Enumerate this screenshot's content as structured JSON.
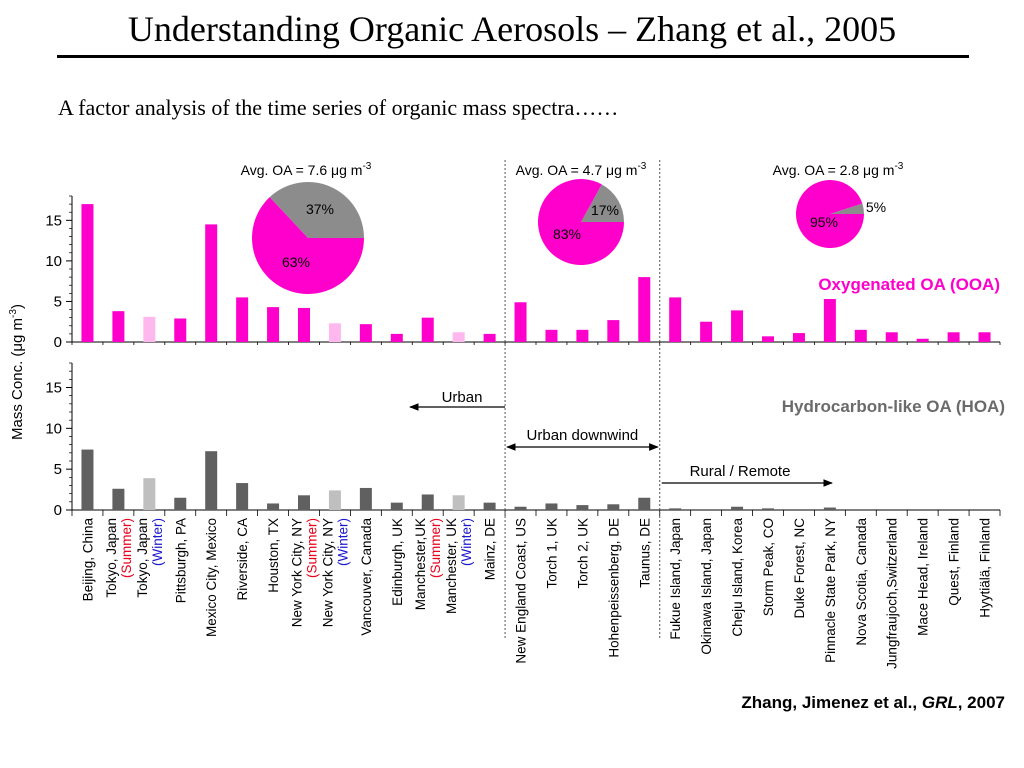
{
  "slide": {
    "title": "Understanding Organic Aerosols – Zhang et al., 2005",
    "subtitle": "A factor analysis of the time series of organic mass spectra……"
  },
  "chart_data": {
    "type": "bar",
    "ylabel": "Mass Conc. (μg m⁻³)",
    "citation": "Zhang, Jimenez et al., GRL, 2007",
    "categories": [
      {
        "lines": [
          {
            "t": "Beijing, China"
          }
        ]
      },
      {
        "lines": [
          {
            "t": "Tokyo, Japan"
          },
          {
            "t": "(Summer)",
            "c": "#e8001c"
          }
        ]
      },
      {
        "lines": [
          {
            "t": "Tokyo, Japan"
          },
          {
            "t": "(Winter)",
            "c": "#1a1acd"
          }
        ]
      },
      {
        "lines": [
          {
            "t": "Pittsburgh, PA"
          }
        ]
      },
      {
        "lines": [
          {
            "t": "Mexico City, Mexico"
          }
        ]
      },
      {
        "lines": [
          {
            "t": "Riverside, CA"
          }
        ]
      },
      {
        "lines": [
          {
            "t": "Houston, TX"
          }
        ]
      },
      {
        "lines": [
          {
            "t": "New York City, NY"
          },
          {
            "t": "(Summer)",
            "c": "#e8001c"
          }
        ]
      },
      {
        "lines": [
          {
            "t": "New York City, NY"
          },
          {
            "t": "(Winter)",
            "c": "#1a1acd"
          }
        ]
      },
      {
        "lines": [
          {
            "t": "Vancouver, Canada"
          }
        ]
      },
      {
        "lines": [
          {
            "t": "Edinburgh, UK"
          }
        ]
      },
      {
        "lines": [
          {
            "t": "Manchester,UK"
          },
          {
            "t": "(Summer)",
            "c": "#e8001c"
          }
        ]
      },
      {
        "lines": [
          {
            "t": "Manchester, UK"
          },
          {
            "t": "(Winter)",
            "c": "#1a1acd"
          }
        ]
      },
      {
        "lines": [
          {
            "t": "Mainz, DE"
          }
        ]
      },
      {
        "lines": [
          {
            "t": "New England Coast, US"
          }
        ]
      },
      {
        "lines": [
          {
            "t": "Torch 1, UK"
          }
        ]
      },
      {
        "lines": [
          {
            "t": "Torch 2, UK"
          }
        ]
      },
      {
        "lines": [
          {
            "t": "Hohenpeissenberg, DE"
          }
        ]
      },
      {
        "lines": [
          {
            "t": "Taunus, DE"
          }
        ]
      },
      {
        "lines": [
          {
            "t": "Fukue Island, Japan"
          }
        ]
      },
      {
        "lines": [
          {
            "t": "Okinawa Island, Japan"
          }
        ]
      },
      {
        "lines": [
          {
            "t": "Cheju Island, Korea"
          }
        ]
      },
      {
        "lines": [
          {
            "t": "Storm Peak, CO"
          }
        ]
      },
      {
        "lines": [
          {
            "t": "Duke Forest, NC"
          }
        ]
      },
      {
        "lines": [
          {
            "t": "Pinnacle State Park, NY"
          }
        ]
      },
      {
        "lines": [
          {
            "t": "Nova Scotia, Canada"
          }
        ]
      },
      {
        "lines": [
          {
            "t": "Jungfraujoch,Switzerland"
          }
        ]
      },
      {
        "lines": [
          {
            "t": "Mace Head, Ireland"
          }
        ]
      },
      {
        "lines": [
          {
            "t": "Quest, Finland"
          }
        ]
      },
      {
        "lines": [
          {
            "t": "Hyytiälä, Finland"
          }
        ]
      }
    ],
    "panels": [
      {
        "name": "Oxygenated OA (OOA)",
        "color": "#ff00cc",
        "light_color": "#ffb8ee",
        "ylim": [
          0,
          18
        ],
        "yticks": [
          0,
          5,
          10,
          15
        ],
        "values": [
          17.0,
          3.8,
          3.1,
          2.9,
          14.5,
          5.5,
          4.3,
          4.2,
          2.3,
          2.2,
          1.0,
          3.0,
          1.2,
          1.0,
          4.9,
          1.5,
          1.5,
          2.7,
          8.0,
          5.5,
          2.5,
          3.9,
          0.7,
          1.1,
          5.3,
          1.5,
          1.2,
          0.4,
          1.2,
          1.2
        ]
      },
      {
        "name": "Hydrocarbon-like OA (HOA)",
        "color": "#606060",
        "light_color": "#bfbfbf",
        "ylim": [
          0,
          18
        ],
        "yticks": [
          0,
          5,
          10,
          15
        ],
        "values": [
          7.4,
          2.6,
          3.9,
          1.5,
          7.2,
          3.3,
          0.8,
          1.8,
          2.4,
          2.7,
          0.9,
          1.9,
          1.8,
          0.9,
          0.4,
          0.8,
          0.6,
          0.7,
          1.5,
          0.2,
          0.0,
          0.4,
          0.2,
          0.0,
          0.3,
          0.0,
          0.0,
          0.0,
          0.0,
          0.0
        ]
      }
    ],
    "winter_highlight_indices": [
      2,
      8,
      12
    ],
    "pies": [
      {
        "title": "Avg. OA = 7.6 μg m⁻³",
        "slices": [
          {
            "label": "37%",
            "value": 37,
            "color": "#8c8c8c"
          },
          {
            "label": "63%",
            "value": 63,
            "color": "#ff00cc"
          }
        ]
      },
      {
        "title": "Avg. OA = 4.7 μg m⁻³",
        "slices": [
          {
            "label": "17%",
            "value": 17,
            "color": "#8c8c8c"
          },
          {
            "label": "83%",
            "value": 83,
            "color": "#ff00cc"
          }
        ]
      },
      {
        "title": "Avg. OA = 2.8 μg m⁻³",
        "slices": [
          {
            "label": "5%",
            "value": 5,
            "color": "#8c8c8c"
          },
          {
            "label": "95%",
            "value": 95,
            "color": "#ff00cc"
          }
        ]
      }
    ],
    "annotations": {
      "urban": "Urban",
      "urban_downwind": "Urban downwind",
      "rural_remote": "Rural / Remote"
    },
    "group_boundaries_after_index": [
      13,
      18
    ]
  }
}
